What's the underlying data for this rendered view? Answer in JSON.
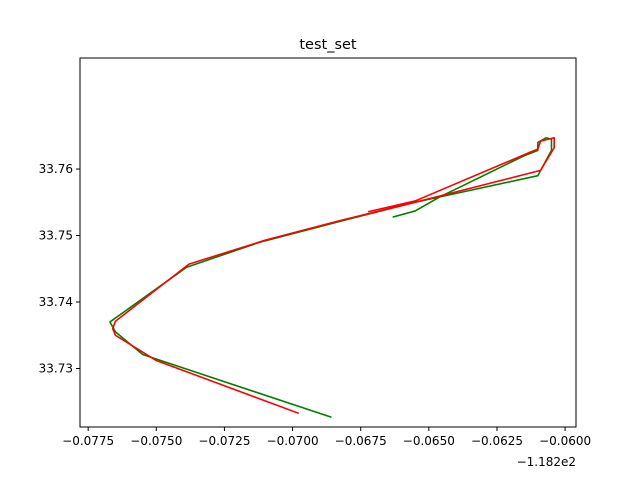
{
  "chart_data": {
    "type": "line",
    "title": "test_set",
    "xlabel": "",
    "ylabel": "",
    "x_offset_label": "−1.182e2",
    "xlim": [
      -0.0778,
      -0.0596
    ],
    "ylim": [
      33.7212,
      33.7767
    ],
    "grid": false,
    "legend": "none",
    "x_ticks": [
      {
        "value": -0.0775,
        "label": "−0.0775"
      },
      {
        "value": -0.075,
        "label": "−0.0750"
      },
      {
        "value": -0.0725,
        "label": "−0.0725"
      },
      {
        "value": -0.07,
        "label": "−0.0700"
      },
      {
        "value": -0.0675,
        "label": "−0.0675"
      },
      {
        "value": -0.065,
        "label": "−0.0650"
      },
      {
        "value": -0.0625,
        "label": "−0.0625"
      },
      {
        "value": -0.06,
        "label": "−0.0600"
      }
    ],
    "y_ticks": [
      {
        "value": 33.73,
        "label": "33.73"
      },
      {
        "value": 33.74,
        "label": "33.74"
      },
      {
        "value": 33.75,
        "label": "33.75"
      },
      {
        "value": 33.76,
        "label": "33.76"
      }
    ],
    "series": [
      {
        "color": "#008000",
        "x": [
          -0.0686,
          -0.0755,
          -0.0765,
          -0.0767,
          -0.0739,
          -0.0712,
          -0.0681,
          -0.0655,
          -0.061,
          -0.0605,
          -0.0605,
          -0.0607,
          -0.061,
          -0.061,
          -0.0615,
          -0.0646,
          -0.0655,
          -0.0663
        ],
        "y": [
          33.7227,
          33.7321,
          33.7355,
          33.737,
          33.7452,
          33.749,
          33.7523,
          33.755,
          33.759,
          33.7628,
          33.7645,
          33.7647,
          33.764,
          33.7628,
          33.762,
          33.7558,
          33.7537,
          33.7528
        ]
      },
      {
        "color": "#ff0000",
        "x": [
          -0.0698,
          -0.075,
          -0.0765,
          -0.0766,
          -0.0765,
          -0.0738,
          -0.071,
          -0.0683,
          -0.0655,
          -0.0609,
          -0.0604,
          -0.0604,
          -0.0609,
          -0.061,
          -0.0613,
          -0.0655,
          -0.0672
        ],
        "y": [
          33.7233,
          33.7312,
          33.735,
          33.736,
          33.7371,
          33.7457,
          33.7493,
          33.7522,
          33.755,
          33.7598,
          33.7632,
          33.7647,
          33.7642,
          33.763,
          33.7625,
          33.7552,
          33.7536
        ]
      }
    ]
  }
}
